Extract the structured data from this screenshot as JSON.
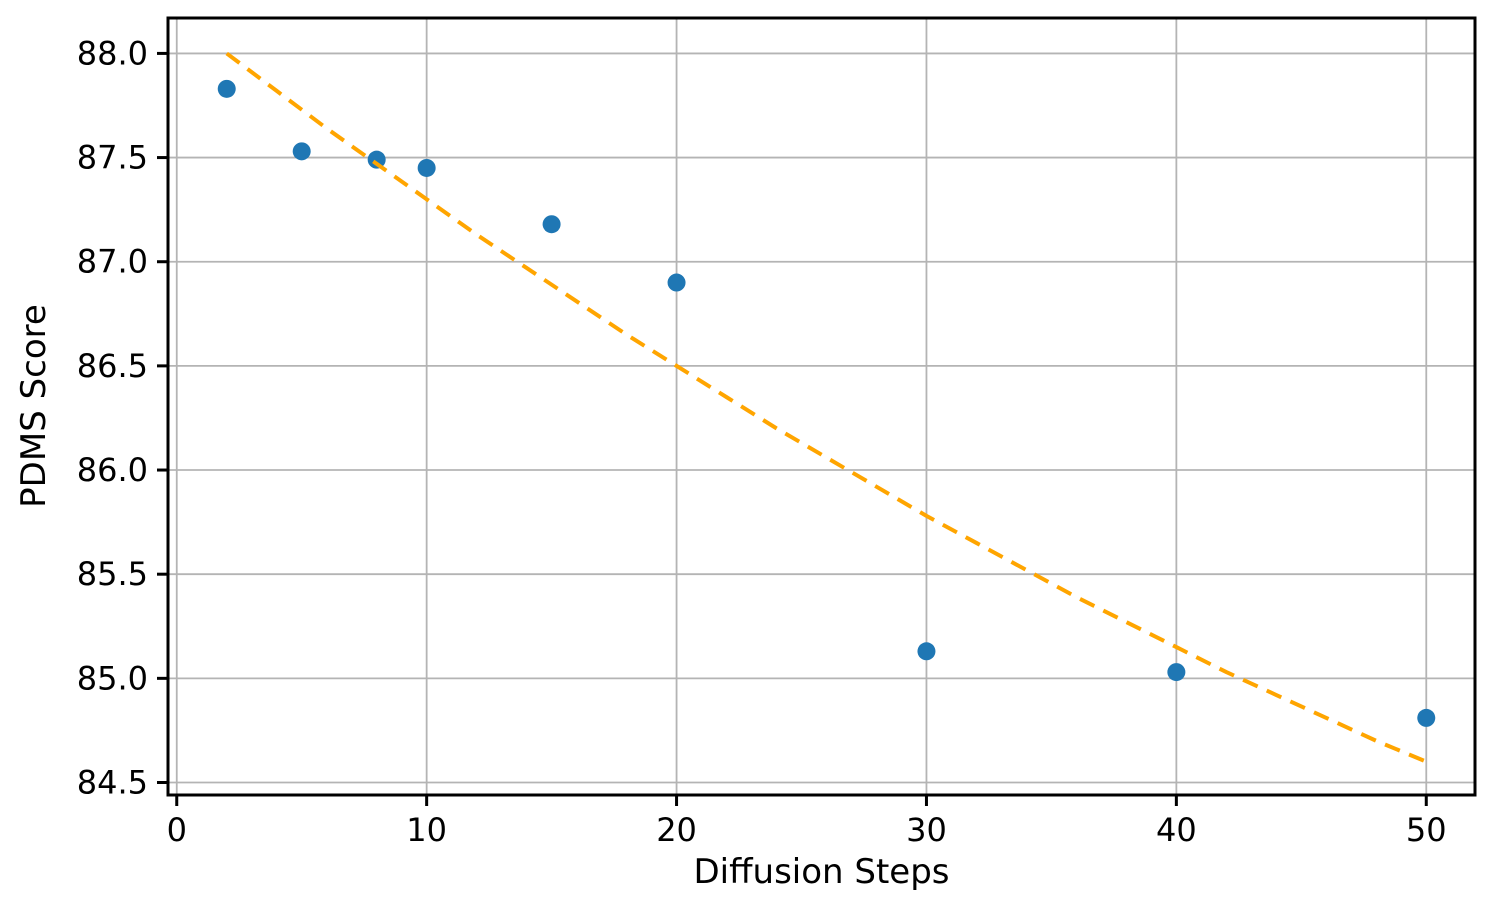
{
  "figure": {
    "background": "#ffffff"
  },
  "chart_data": {
    "type": "scatter",
    "title": "",
    "xlabel": "Diffusion Steps",
    "ylabel": "PDMS Score",
    "xlim": [
      -0.35,
      51.95
    ],
    "ylim": [
      84.44,
      88.17
    ],
    "grid": true,
    "legend": "none",
    "x_tick_values": [
      0,
      10,
      20,
      30,
      40,
      50
    ],
    "x_tick_labels": [
      "0",
      "10",
      "20",
      "30",
      "40",
      "50"
    ],
    "y_tick_values": [
      84.5,
      85.0,
      85.5,
      86.0,
      86.5,
      87.0,
      87.5,
      88.0
    ],
    "y_tick_labels": [
      "84.5",
      "85.0",
      "85.5",
      "86.0",
      "86.5",
      "87.0",
      "87.5",
      "88.0"
    ],
    "series": [
      {
        "name": "pdms-scatter",
        "type": "scatter",
        "color": "#1f77b4",
        "marker_radius": 9,
        "x": [
          2,
          5,
          8,
          10,
          15,
          20,
          30,
          40,
          50
        ],
        "y": [
          87.83,
          87.53,
          87.49,
          87.45,
          87.18,
          86.9,
          85.13,
          85.03,
          84.81
        ]
      },
      {
        "name": "trend-dashed",
        "type": "line",
        "style": "dashed",
        "color": "#ffa500",
        "stroke_width": 4,
        "x": [
          2,
          4,
          6,
          8,
          10,
          12,
          14,
          16,
          18,
          20,
          22,
          24,
          26,
          28,
          30,
          32,
          34,
          36,
          38,
          40,
          42,
          44,
          46,
          48,
          50
        ],
        "y": [
          88.0,
          87.82,
          87.64,
          87.47,
          87.3,
          87.13,
          86.97,
          86.81,
          86.65,
          86.5,
          86.35,
          86.2,
          86.06,
          85.92,
          85.78,
          85.65,
          85.52,
          85.39,
          85.27,
          85.15,
          85.03,
          84.92,
          84.81,
          84.7,
          84.6
        ]
      }
    ],
    "colors": {
      "grid": "#b4b4b4",
      "spine": "#000000",
      "tick": "#000000",
      "text": "#000000",
      "background": "#ffffff"
    }
  }
}
